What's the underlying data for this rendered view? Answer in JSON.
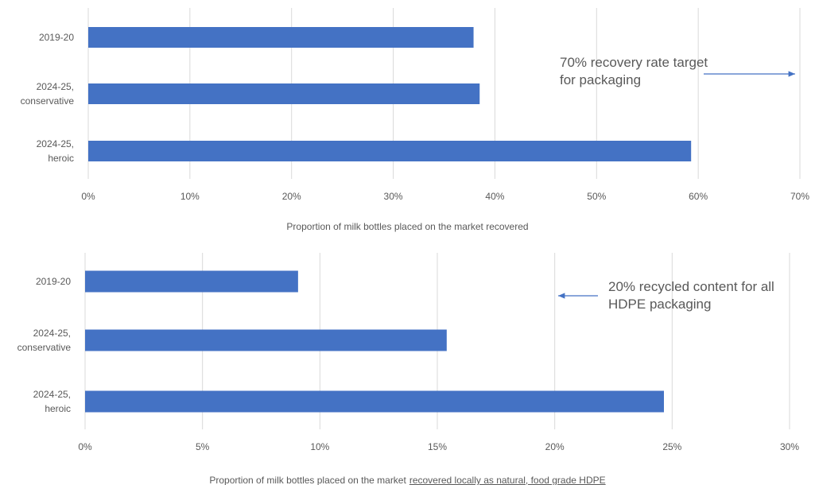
{
  "chart_data": [
    {
      "type": "bar",
      "orientation": "horizontal",
      "categories": [
        "2019-20",
        "2024-25,\nconservative",
        "2024-25,\nheroic"
      ],
      "values": [
        37.9,
        38.5,
        59.3
      ],
      "color": "#4472c4",
      "xlim": [
        0,
        70
      ],
      "xticks": [
        {
          "value": 0,
          "label": "0%"
        },
        {
          "value": 10,
          "label": "10%"
        },
        {
          "value": 20,
          "label": "20%"
        },
        {
          "value": 30,
          "label": "30%"
        },
        {
          "value": 40,
          "label": "40%"
        },
        {
          "value": 50,
          "label": "50%"
        },
        {
          "value": 60,
          "label": "60%"
        },
        {
          "value": 70,
          "label": "70%"
        }
      ],
      "grid": true,
      "xlabel": "Proportion of milk bottles placed on the market recovered",
      "annotation": "70% recovery rate target\nfor packaging"
    },
    {
      "type": "bar",
      "orientation": "horizontal",
      "categories": [
        "2019-20",
        "2024-25,\nconservative",
        "2024-25,\nheroic"
      ],
      "values": [
        9.07,
        15.4,
        24.65
      ],
      "color": "#4472c4",
      "xlim": [
        0,
        30
      ],
      "xticks": [
        {
          "value": 0,
          "label": "0%"
        },
        {
          "value": 5,
          "label": "5%"
        },
        {
          "value": 10,
          "label": "10%"
        },
        {
          "value": 15,
          "label": "15%"
        },
        {
          "value": 20,
          "label": "20%"
        },
        {
          "value": 25,
          "label": "25%"
        },
        {
          "value": 30,
          "label": "30%"
        }
      ],
      "grid": true,
      "xlabel": "Proportion of milk bottles placed on the market",
      "xlabel_emphasis": "recovered locally as natural, food grade HDPE",
      "annotation": "20% recycled content for all\nHDPE packaging"
    }
  ]
}
